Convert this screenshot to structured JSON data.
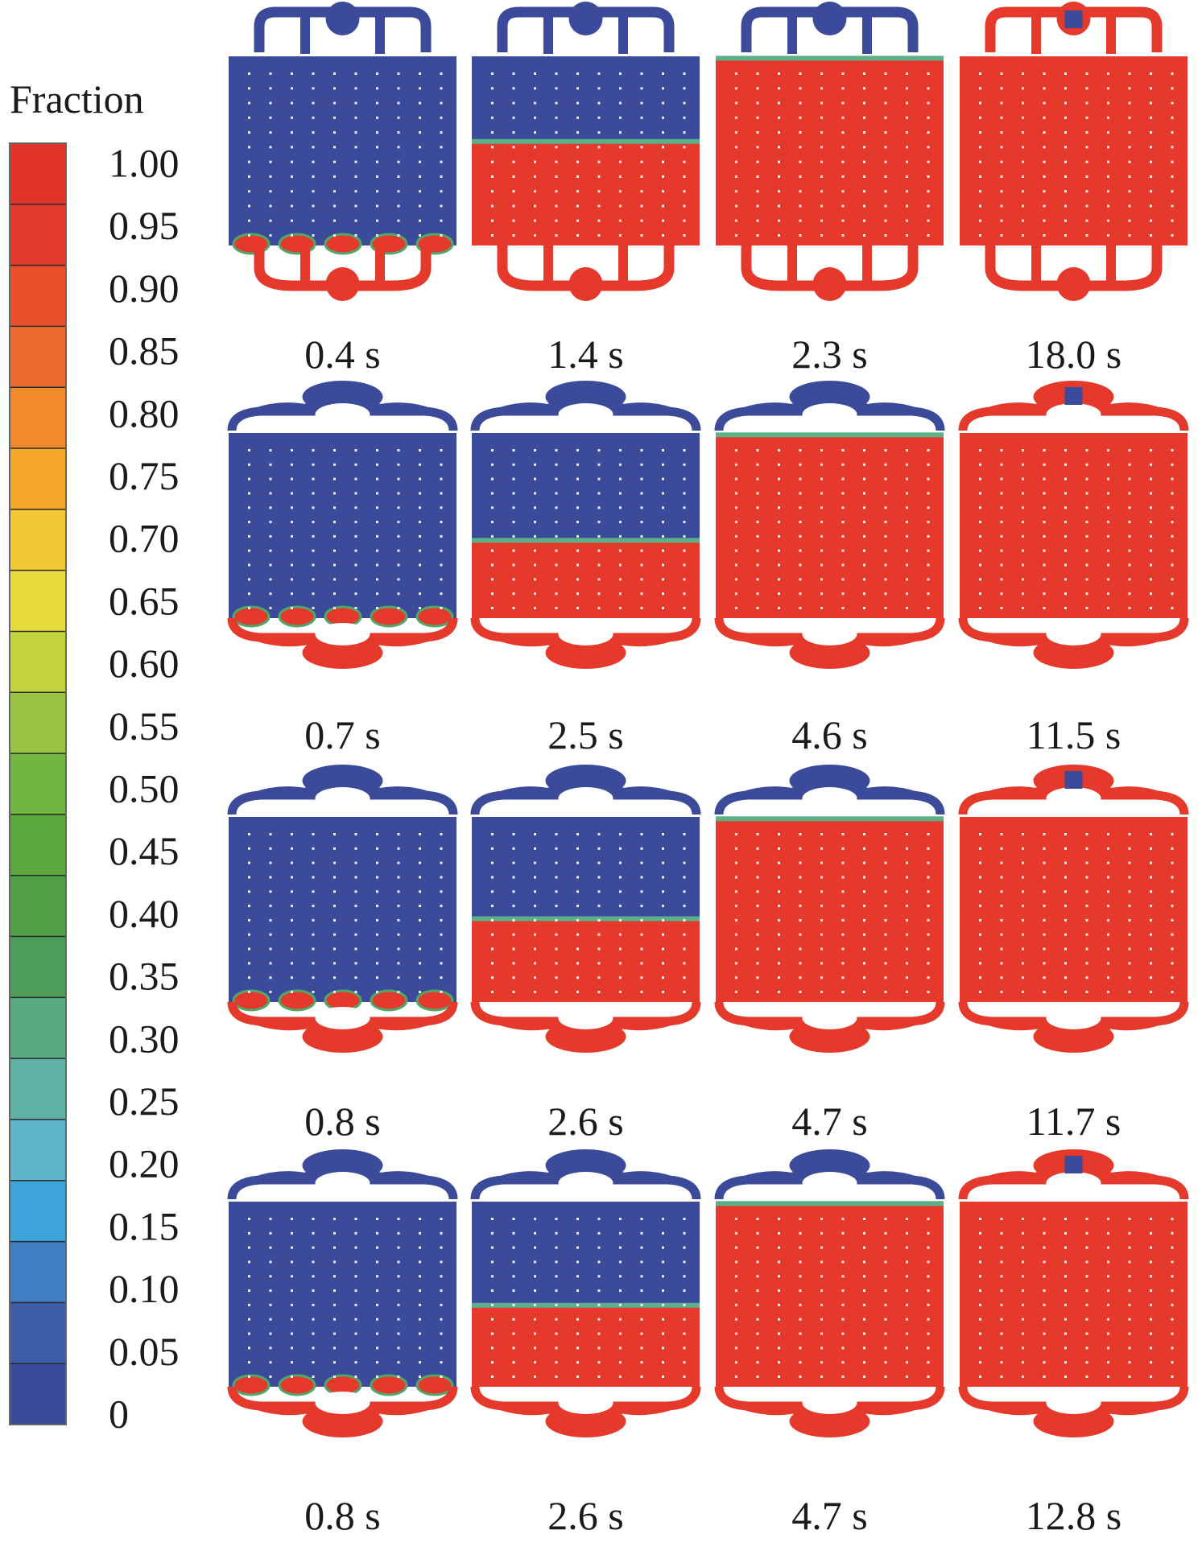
{
  "legend": {
    "title": "Fraction",
    "ticks": [
      "1.00",
      "0.95",
      "0.90",
      "0.85",
      "0.80",
      "0.75",
      "0.70",
      "0.65",
      "0.60",
      "0.55",
      "0.50",
      "0.45",
      "0.40",
      "0.35",
      "0.30",
      "0.25",
      "0.20",
      "0.15",
      "0.10",
      "0.05",
      "0"
    ],
    "colors": [
      "#e0332a",
      "#e23a2b",
      "#e8512c",
      "#ed6a2d",
      "#f08a2c",
      "#f4a72c",
      "#f2c737",
      "#e8dc3c",
      "#c3d43f",
      "#9ac441",
      "#72b640",
      "#5ba73e",
      "#4f9f45",
      "#4e9c5a",
      "#5aaa80",
      "#5fb3a5",
      "#5cb6c8",
      "#3ea5db",
      "#3f7ec2",
      "#3d5da8",
      "#3c4a9a"
    ]
  },
  "colors": {
    "air": "#3c4a9a",
    "liquid": "#e5392c",
    "dot": "#ffffff"
  },
  "designs": [
    {
      "name": "design-a",
      "panels": [
        {
          "time": "0.4 s",
          "fill": 0.0
        },
        {
          "time": "1.4 s",
          "fill": 0.55
        },
        {
          "time": "2.3 s",
          "fill": 0.99
        },
        {
          "time": "18.0 s",
          "fill": 1.0
        }
      ]
    },
    {
      "name": "design-b",
      "panels": [
        {
          "time": "0.7 s",
          "fill": 0.0
        },
        {
          "time": "2.5 s",
          "fill": 0.42
        },
        {
          "time": "4.6 s",
          "fill": 0.99
        },
        {
          "time": "11.5 s",
          "fill": 1.0
        }
      ]
    },
    {
      "name": "design-c",
      "panels": [
        {
          "time": "0.8 s",
          "fill": 0.0
        },
        {
          "time": "2.6 s",
          "fill": 0.45
        },
        {
          "time": "4.7 s",
          "fill": 0.99
        },
        {
          "time": "11.7 s",
          "fill": 1.0
        }
      ]
    },
    {
      "name": "design-d",
      "panels": [
        {
          "time": "0.8 s",
          "fill": 0.0
        },
        {
          "time": "2.6 s",
          "fill": 0.44
        },
        {
          "time": "4.7 s",
          "fill": 0.99
        },
        {
          "time": "12.8 s",
          "fill": 1.0
        }
      ]
    }
  ]
}
